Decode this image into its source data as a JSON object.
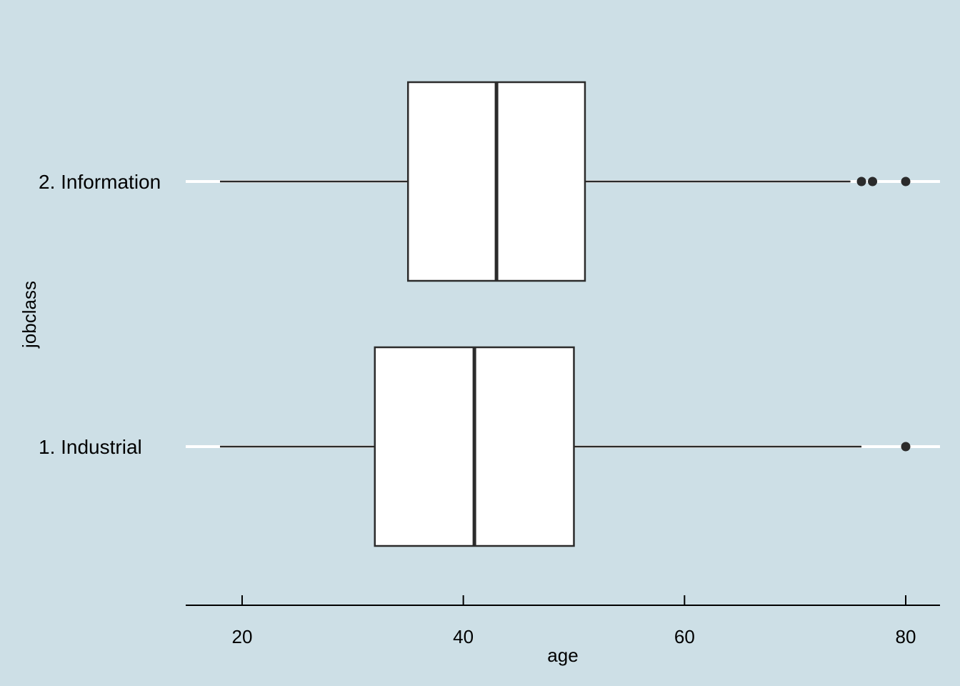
{
  "colors": {
    "background": "#cddfe6",
    "box_fill": "#ffffff",
    "line": "#2b2b2b",
    "gridline": "#ffffff",
    "axis": "#000000"
  },
  "chart_data": {
    "type": "boxplot",
    "orientation": "horizontal",
    "xlabel": "age",
    "ylabel": "jobclass",
    "xlim": [
      14.9,
      83.1
    ],
    "x_ticks": [
      20,
      40,
      60,
      80
    ],
    "x_tick_labels": [
      "20",
      "40",
      "60",
      "80"
    ],
    "grid": "horizontal lines at categories",
    "categories": [
      "1. Industrial",
      "2. Information"
    ],
    "boxes": [
      {
        "category": "1. Industrial",
        "whisker_low": 18,
        "q1": 32,
        "median": 41,
        "q3": 50,
        "whisker_high": 76,
        "outliers": [
          80
        ]
      },
      {
        "category": "2. Information",
        "whisker_low": 18,
        "q1": 35,
        "median": 43,
        "q3": 51,
        "whisker_high": 75,
        "outliers": [
          76,
          77,
          80
        ]
      }
    ]
  }
}
